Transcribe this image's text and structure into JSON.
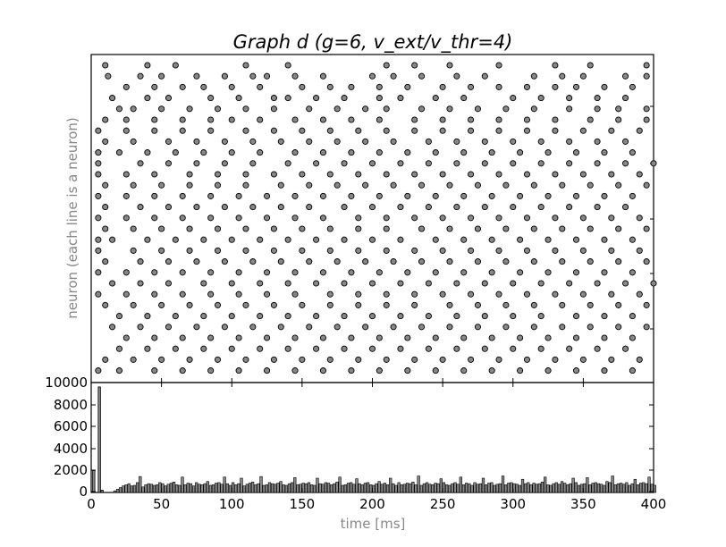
{
  "chart_data": [
    {
      "type": "scatter",
      "title": "Graph d (g=6, v_ext/v_thr=4)",
      "ylabel": "neuron (each line is a neuron)",
      "xlim": [
        0,
        400
      ],
      "neuron_rows": 29,
      "marker": "grey-circle",
      "series": [
        {
          "name": "",
          "spikes": [
            [
              5,
              [
                10,
                40,
                60,
                110,
                140,
                210,
                230,
                255,
                290,
                330,
                355,
                395
              ]
            ],
            [
              5,
              [
                12,
                35,
                50,
                75,
                95,
                115,
                125,
                145,
                165,
                200,
                215,
                235,
                260,
                280,
                315,
                335,
                350,
                380,
                395
              ]
            ],
            [
              5,
              [
                25,
                45,
                65,
                80,
                100,
                120,
                150,
                170,
                185,
                205,
                225,
                250,
                270,
                290,
                310,
                330,
                345,
                365,
                385
              ]
            ],
            [
              5,
              [
                15,
                40,
                55,
                85,
                105,
                130,
                140,
                160,
                180,
                205,
                220,
                245,
                265,
                300,
                320,
                340,
                360,
                380
              ]
            ],
            [
              5,
              [
                20,
                30,
                50,
                70,
                90,
                110,
                130,
                155,
                175,
                195,
                210,
                235,
                255,
                275,
                295,
                315,
                340,
                360,
                375,
                395
              ]
            ],
            [
              5,
              [
                10,
                25,
                45,
                65,
                85,
                100,
                120,
                145,
                165,
                185,
                205,
                230,
                250,
                270,
                290,
                310,
                330,
                355,
                375,
                395
              ]
            ],
            [
              5,
              [
                5,
                25,
                45,
                65,
                85,
                110,
                130,
                150,
                170,
                190,
                210,
                230,
                250,
                270,
                290,
                310,
                330,
                350,
                370,
                390
              ]
            ],
            [
              5,
              [
                10,
                30,
                55,
                75,
                95,
                115,
                135,
                155,
                175,
                195,
                215,
                240,
                260,
                280,
                300,
                320,
                340,
                360,
                380
              ]
            ],
            [
              5,
              [
                5,
                20,
                40,
                60,
                80,
                100,
                120,
                145,
                165,
                185,
                205,
                225,
                245,
                265,
                285,
                305,
                325,
                345,
                365,
                385
              ]
            ],
            [
              5,
              [
                5,
                35,
                55,
                75,
                95,
                115,
                140,
                160,
                180,
                200,
                220,
                240,
                260,
                280,
                300,
                320,
                340,
                360,
                380,
                400
              ]
            ],
            [
              5,
              [
                5,
                25,
                45,
                70,
                90,
                110,
                130,
                150,
                170,
                190,
                210,
                230,
                250,
                270,
                290,
                310,
                330,
                350,
                370,
                390
              ]
            ],
            [
              5,
              [
                10,
                30,
                50,
                70,
                90,
                110,
                135,
                155,
                175,
                195,
                215,
                235,
                255,
                275,
                295,
                315,
                335,
                355,
                375,
                395
              ]
            ],
            [
              5,
              [
                5,
                25,
                45,
                65,
                85,
                105,
                125,
                145,
                165,
                185,
                205,
                225,
                245,
                265,
                285,
                305,
                325,
                345,
                365,
                385
              ]
            ],
            [
              5,
              [
                10,
                35,
                55,
                75,
                95,
                115,
                135,
                155,
                180,
                200,
                220,
                240,
                260,
                280,
                300,
                320,
                340,
                360,
                380
              ]
            ],
            [
              5,
              [
                5,
                25,
                45,
                65,
                85,
                105,
                125,
                145,
                165,
                190,
                210,
                230,
                250,
                270,
                290,
                310,
                330,
                350,
                370,
                390
              ]
            ],
            [
              5,
              [
                10,
                30,
                50,
                70,
                90,
                110,
                130,
                150,
                170,
                190,
                210,
                235,
                255,
                275,
                295,
                315,
                335,
                355,
                375,
                395
              ]
            ],
            [
              5,
              [
                5,
                15,
                40,
                60,
                80,
                100,
                120,
                140,
                160,
                180,
                200,
                220,
                245,
                265,
                285,
                305,
                325,
                345,
                365,
                385
              ]
            ],
            [
              5,
              [
                5,
                30,
                50,
                70,
                90,
                110,
                130,
                150,
                170,
                190,
                210,
                230,
                250,
                270,
                290,
                310,
                330,
                350,
                370,
                390
              ]
            ],
            [
              5,
              [
                10,
                35,
                55,
                75,
                95,
                115,
                135,
                155,
                175,
                195,
                215,
                235,
                255,
                275,
                295,
                315,
                335,
                355,
                375,
                395
              ]
            ],
            [
              5,
              [
                5,
                25,
                45,
                65,
                85,
                105,
                125,
                145,
                165,
                185,
                205,
                225,
                245,
                265,
                285,
                305,
                325,
                345,
                365,
                385
              ]
            ],
            [
              5,
              [
                15,
                35,
                55,
                80,
                100,
                120,
                140,
                160,
                180,
                200,
                220,
                240,
                260,
                280,
                300,
                320,
                340,
                360,
                380,
                400
              ]
            ],
            [
              5,
              [
                5,
                25,
                45,
                65,
                85,
                105,
                125,
                145,
                170,
                190,
                210,
                230,
                250,
                270,
                290,
                310,
                330,
                350,
                370,
                390
              ]
            ],
            [
              5,
              [
                10,
                30,
                50,
                70,
                90,
                110,
                130,
                150,
                170,
                190,
                210,
                230,
                255,
                275,
                295,
                315,
                335,
                355,
                375,
                395
              ]
            ],
            [
              5,
              [
                20,
                40,
                60,
                80,
                100,
                120,
                140,
                160,
                180,
                200,
                220,
                240,
                260,
                280,
                300,
                320,
                345,
                365,
                385
              ]
            ],
            [
              5,
              [
                15,
                35,
                55,
                75,
                95,
                115,
                135,
                155,
                175,
                195,
                215,
                235,
                255,
                275,
                295,
                315,
                335,
                355,
                375,
                395
              ]
            ],
            [
              5,
              [
                25,
                45,
                65,
                85,
                105,
                125,
                145,
                165,
                185,
                205,
                225,
                245,
                265,
                285,
                305,
                325,
                345,
                365,
                385
              ]
            ],
            [
              5,
              [
                20,
                40,
                60,
                80,
                100,
                120,
                140,
                160,
                180,
                200,
                220,
                240,
                260,
                280,
                300,
                320,
                340,
                360,
                380
              ]
            ],
            [
              5,
              [
                10,
                30,
                50,
                70,
                90,
                110,
                130,
                150,
                170,
                190,
                210,
                230,
                250,
                270,
                290,
                310,
                330,
                350,
                370,
                390
              ]
            ],
            [
              5,
              [
                5,
                20,
                45,
                65,
                85,
                105,
                125,
                145,
                165,
                185,
                205,
                225,
                245,
                265,
                285,
                305,
                325,
                345,
                365,
                385
              ]
            ]
          ]
        }
      ]
    },
    {
      "type": "bar",
      "xlabel": "time [ms]",
      "xlim": [
        0,
        400
      ],
      "ylim": [
        0,
        10000
      ],
      "yticks": [
        "10000",
        "8000",
        "6000",
        "4000",
        "2000",
        "0"
      ],
      "xticks": [
        "0",
        "50",
        "100",
        "150",
        "200",
        "250",
        "300",
        "350",
        "400"
      ],
      "bin_width": 2,
      "values_head": [
        2000,
        0,
        9600,
        200
      ],
      "baseline_values": [
        150,
        300,
        450,
        600,
        700,
        800,
        600,
        650,
        900,
        1450,
        500,
        700,
        800,
        750,
        650,
        700,
        900,
        800,
        600,
        750,
        850,
        950,
        700,
        650,
        1400,
        700,
        850,
        800,
        600,
        900,
        750,
        700,
        800,
        1000,
        650,
        700,
        850,
        900,
        750,
        1400,
        800,
        650,
        900,
        700,
        800,
        1300,
        600,
        750,
        850,
        950,
        700,
        800,
        1450,
        650,
        700,
        900,
        800,
        750,
        850,
        1000,
        700,
        650,
        800,
        900,
        1350,
        700,
        750,
        850,
        800,
        900,
        700,
        650,
        1300,
        800,
        750,
        900,
        850,
        700,
        800,
        950,
        1400,
        650,
        700,
        850,
        900,
        750,
        1250,
        800,
        700,
        850,
        900,
        700,
        650,
        800,
        1000,
        750,
        850,
        700,
        1300,
        800,
        650,
        900,
        700,
        750,
        850,
        800,
        950,
        700,
        1500,
        650,
        800,
        900,
        750,
        700,
        850,
        800,
        1250,
        900,
        700,
        650,
        800,
        900,
        750,
        1400,
        700,
        850,
        800,
        650,
        900,
        750,
        800,
        1300,
        700,
        850,
        900,
        650,
        750,
        800,
        1500,
        700,
        850,
        900,
        800,
        750,
        650,
        1200,
        800,
        900,
        700,
        850,
        750,
        800,
        950,
        1400,
        700,
        650,
        800,
        900,
        750,
        1000,
        850,
        700,
        800,
        1300,
        900,
        650,
        750,
        800,
        1350,
        700,
        850,
        900,
        800,
        750,
        650,
        1000,
        900,
        1500,
        700,
        800,
        850,
        750,
        900,
        650,
        800,
        1200,
        700,
        850,
        900,
        800,
        1400,
        750,
        650,
        900,
        800,
        700,
        1300,
        850,
        750,
        900,
        800
      ]
    }
  ]
}
